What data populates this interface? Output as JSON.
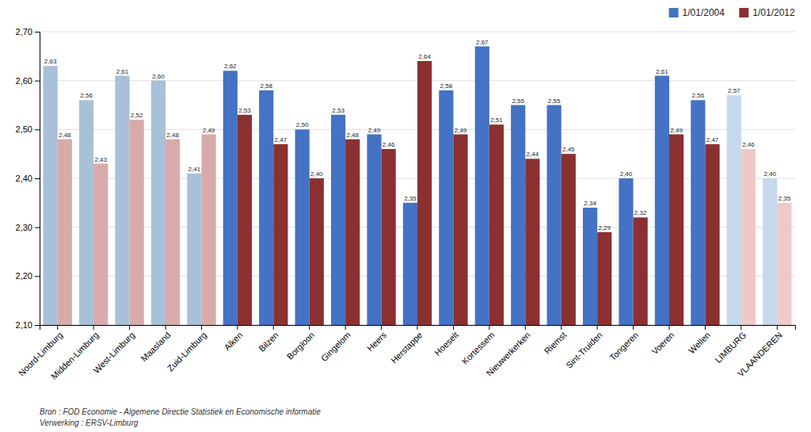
{
  "chart_data": {
    "type": "bar",
    "categories": [
      "Noord-Limburg",
      "Midden-Limburg",
      "West-Limburg",
      "Maasland",
      "Zuid-Limburg",
      "Alken",
      "Bilzen",
      "Borgloon",
      "Gingelom",
      "Heers",
      "Herstappe",
      "Hoeselt",
      "Kortessem",
      "Nieuwerkerken",
      "Riemst",
      "Sint-Truiden",
      "Tongeren",
      "Voeren",
      "Wellen",
      "LIMBURG",
      "VLAANDEREN"
    ],
    "series": [
      {
        "name": "1/01/2004",
        "color": "#4472C4",
        "colors": [
          "#A8C0D8",
          "#A8C0D8",
          "#A8C0D8",
          "#A8C0D8",
          "#A8C0D8",
          "#4472C4",
          "#4472C4",
          "#4472C4",
          "#4472C4",
          "#4472C4",
          "#4472C4",
          "#4472C4",
          "#4472C4",
          "#4472C4",
          "#4472C4",
          "#4472C4",
          "#4472C4",
          "#4472C4",
          "#4472C4",
          "#C5D8EC",
          "#C5D8EC"
        ],
        "values": [
          2.63,
          2.56,
          2.61,
          2.6,
          2.41,
          2.62,
          2.58,
          2.5,
          2.53,
          2.49,
          2.35,
          2.58,
          2.67,
          2.55,
          2.55,
          2.34,
          2.4,
          2.61,
          2.56,
          2.57,
          2.4
        ],
        "value_labels": [
          "2,63",
          "2,56",
          "2,61",
          "2,60",
          "2,41",
          "2,62",
          "2,58",
          "2,50",
          "2,53",
          "2,49",
          "2,35",
          "2,58",
          "2,67",
          "2,55",
          "2,55",
          "2,34",
          "2,40",
          "2,61",
          "2,56",
          "2,57",
          "2,40"
        ]
      },
      {
        "name": "1/01/2012",
        "color": "#8B3030",
        "colors": [
          "#D9AAAA",
          "#D9AAAA",
          "#D9AAAA",
          "#D9AAAA",
          "#D9AAAA",
          "#8B3030",
          "#8B3030",
          "#8B3030",
          "#8B3030",
          "#8B3030",
          "#8B3030",
          "#8B3030",
          "#8B3030",
          "#8B3030",
          "#8B3030",
          "#8B3030",
          "#8B3030",
          "#8B3030",
          "#8B3030",
          "#EFC9C9",
          "#EFC9C9"
        ],
        "values": [
          2.48,
          2.43,
          2.52,
          2.48,
          2.49,
          2.53,
          2.47,
          2.4,
          2.48,
          2.46,
          2.64,
          2.49,
          2.51,
          2.44,
          2.45,
          2.29,
          2.32,
          2.49,
          2.47,
          2.46,
          2.35
        ],
        "value_labels": [
          "2,48",
          "2,43",
          "2,52",
          "2,48",
          "2,49",
          "2,53",
          "2,47",
          "2,40",
          "2,48",
          "2,46",
          "2,64",
          "2,49",
          "2,51",
          "2,44",
          "2,45",
          "2,29",
          "2,32",
          "2,49",
          "2,47",
          "2,46",
          "2,35"
        ]
      }
    ],
    "ylim": [
      2.1,
      2.7
    ],
    "yticks": [
      {
        "value": 2.1,
        "label": "2,10"
      },
      {
        "value": 2.2,
        "label": "2,20"
      },
      {
        "value": 2.3,
        "label": "2,30"
      },
      {
        "value": 2.4,
        "label": "2,40"
      },
      {
        "value": 2.5,
        "label": "2,50"
      },
      {
        "value": 2.6,
        "label": "2,60"
      },
      {
        "value": 2.7,
        "label": "2,70"
      }
    ],
    "grid": true,
    "legend": "upper right",
    "data_labels": true,
    "annotations": [
      "Bron : FOD Economie - Algemene Directie Statistiek en Economische informatie",
      "Verwerking : ERSV-Limburg"
    ]
  }
}
